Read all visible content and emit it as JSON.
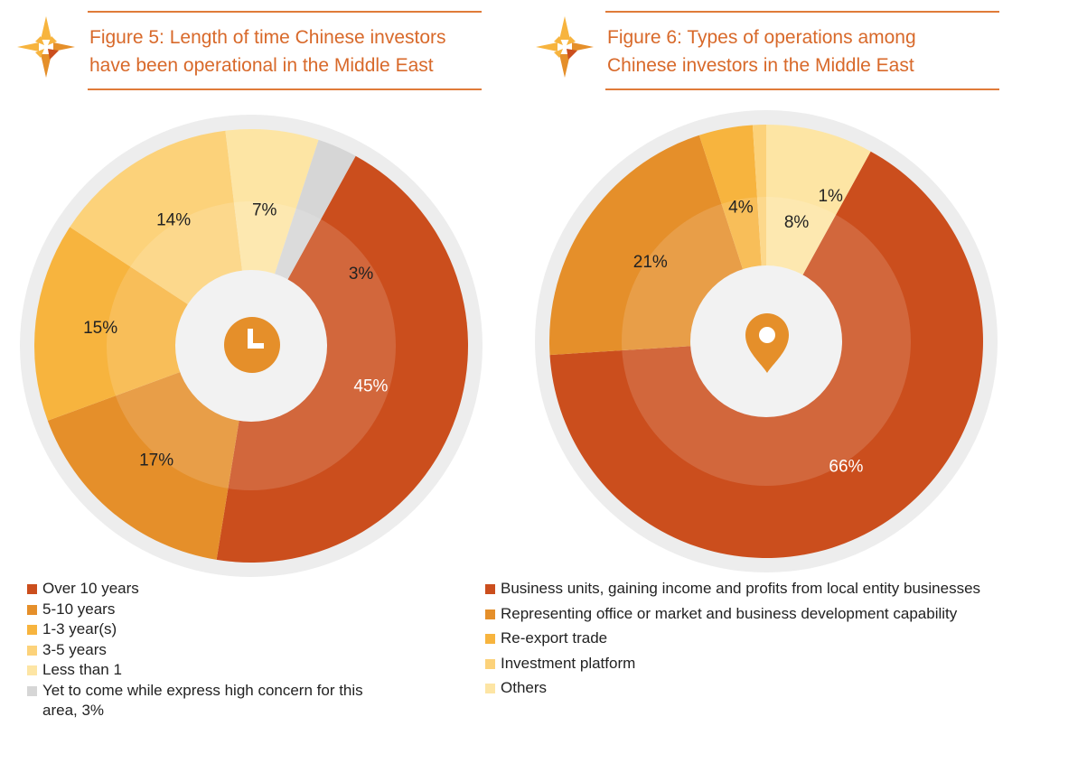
{
  "chart_data": [
    {
      "type": "pie",
      "title": "Figure 5: Length of time Chinese investors have been operational in the Middle East",
      "categories": [
        "Over 10 years",
        "5-10 years",
        "1-3 year(s)",
        "3-5 years",
        "Less than 1",
        "Yet to come while express high concern for this area, 3%"
      ],
      "values": [
        45,
        17,
        15,
        14,
        7,
        3
      ],
      "value_labels": [
        "45%",
        "17%",
        "15%",
        "14%",
        "7%",
        "3%"
      ],
      "colors": [
        "#CB4E1D",
        "#E58F2A",
        "#F7B43E",
        "#FCD27A",
        "#FDE5A4",
        "#D6D6D6"
      ],
      "legend_position": "bottom-left"
    },
    {
      "type": "pie",
      "title": "Figure 6: Types of operations among Chinese investors in the Middle East",
      "categories": [
        "Business units, gaining income and profits from local entity businesses",
        "Representing office or market and business development capability",
        "Re-export trade",
        "Investment platform",
        "Others"
      ],
      "values": [
        66,
        21,
        4,
        1,
        8
      ],
      "value_labels": [
        "66%",
        "21%",
        "4%",
        "1%",
        "8%"
      ],
      "colors": [
        "#CB4E1D",
        "#E58F2A",
        "#F7B43E",
        "#FCD27A",
        "#FDE5A4"
      ],
      "legend_position": "bottom"
    }
  ],
  "icons": {
    "left_center": "clock-icon",
    "right_center": "location-pin-icon",
    "title_logo": "compass-star-logo"
  },
  "colors": {
    "accent": "#D8692A",
    "outer_ring": "#EDEDED",
    "center": "#F2F2F2",
    "icon": "#E58F2A"
  }
}
